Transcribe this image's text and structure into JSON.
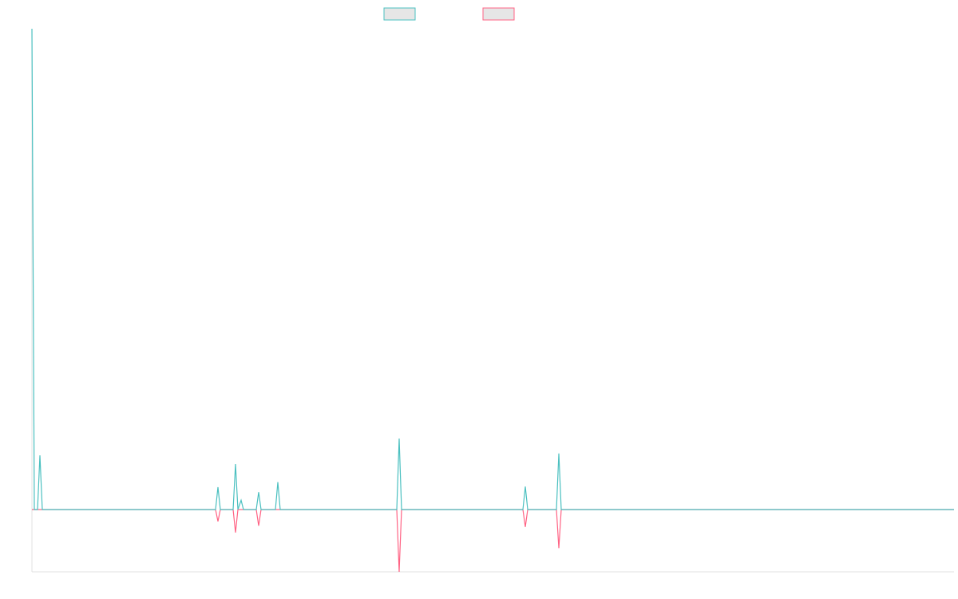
{
  "chart_data": {
    "type": "line",
    "xlim": [
      0,
      1155
    ],
    "ylim": [
      -1,
      7.72
    ],
    "x": [
      0,
      3,
      7,
      10,
      13,
      230,
      233,
      236,
      252,
      255,
      258,
      262,
      265,
      281,
      284,
      287,
      305,
      308,
      311,
      457,
      460,
      463,
      615,
      618,
      621,
      657,
      660,
      663,
      1155
    ],
    "series": [
      {
        "color": "#4bc0c0",
        "values": [
          7.72,
          0,
          0,
          0.87,
          0,
          0,
          0.36,
          0,
          0,
          0.73,
          0,
          0.15,
          0,
          0,
          0.28,
          0,
          0,
          0.44,
          0,
          0,
          1.14,
          0,
          0,
          0.37,
          0,
          0,
          0.9,
          0,
          0
        ]
      },
      {
        "color": "#ff6384",
        "values": [
          0,
          0,
          0,
          0,
          0,
          0,
          -0.19,
          0,
          0,
          -0.37,
          0,
          0,
          0,
          0,
          -0.26,
          0,
          0,
          0,
          0,
          0,
          -1,
          0,
          0,
          -0.28,
          0,
          0,
          -0.62,
          0,
          0
        ]
      }
    ]
  }
}
